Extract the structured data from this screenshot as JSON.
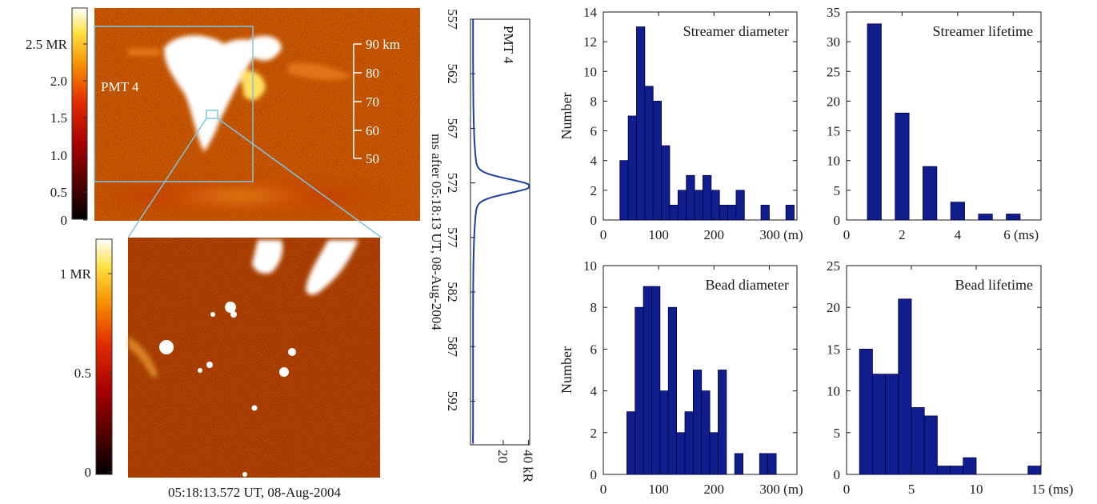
{
  "figure": {
    "top_image": {
      "colorbar_ticks": [
        "2.5 MR",
        "2.0",
        "1.5",
        "1.0",
        "0.5",
        "0"
      ],
      "box_label": "PMT 4",
      "altitude_ticks": [
        "90 km",
        "80",
        "70",
        "60",
        "50"
      ],
      "colormap": "hot"
    },
    "bottom_image": {
      "colorbar_ticks": [
        "1 MR",
        "0.5",
        "0"
      ],
      "caption": "05:18:13.572 UT, 08-Aug-2004",
      "colormap": "hot"
    },
    "pmt_trace": {
      "label": "PMT 4",
      "time_ticks": [
        "557",
        "562",
        "567",
        "572",
        "577",
        "582",
        "587",
        "592"
      ],
      "time_label": "ms after 05:18:13 UT, 08-Aug-2004",
      "intensity_ticks": [
        "20",
        "40 kR"
      ],
      "line_color": "#1f3f9a"
    },
    "bar_color": "#0f1e8c"
  },
  "chart_data": [
    {
      "type": "bar",
      "title": "Streamer diameter",
      "ylabel": "Number",
      "xlim": [
        0,
        350
      ],
      "ylim": [
        0,
        14
      ],
      "x_ticks": [
        0,
        100,
        200,
        300
      ],
      "x_tick_labels": [
        "0",
        "100",
        "200",
        "300 (m)"
      ],
      "y_ticks": [
        0,
        2,
        4,
        6,
        8,
        10,
        12,
        14
      ],
      "bin_width": 15,
      "x": [
        37.5,
        52.5,
        67.5,
        82.5,
        97.5,
        112.5,
        127.5,
        142.5,
        157.5,
        172.5,
        187.5,
        202.5,
        217.5,
        232.5,
        247.5,
        292.5,
        337.5
      ],
      "values": [
        4,
        7,
        13,
        9,
        8,
        5,
        1,
        2,
        3,
        2,
        3,
        2,
        1,
        1,
        2,
        1,
        1
      ]
    },
    {
      "type": "bar",
      "title": "Streamer lifetime",
      "ylabel": "",
      "xlim": [
        0,
        7
      ],
      "ylim": [
        0,
        35
      ],
      "x_ticks": [
        0,
        2,
        4,
        6
      ],
      "x_tick_labels": [
        "0",
        "2",
        "4",
        "6 (ms)"
      ],
      "y_ticks": [
        0,
        5,
        10,
        15,
        20,
        25,
        30,
        35
      ],
      "bin_width": 0.5,
      "x": [
        1,
        2,
        3,
        4,
        5,
        6
      ],
      "values": [
        33,
        18,
        9,
        3,
        1,
        1
      ]
    },
    {
      "type": "bar",
      "title": "Bead diameter",
      "ylabel": "Number",
      "xlim": [
        0,
        350
      ],
      "ylim": [
        0,
        10
      ],
      "x_ticks": [
        0,
        100,
        200,
        300
      ],
      "x_tick_labels": [
        "0",
        "100",
        "200",
        "300 (m)"
      ],
      "y_ticks": [
        0,
        2,
        4,
        6,
        8,
        10
      ],
      "bin_width": 15,
      "x": [
        50,
        65,
        80,
        95,
        110,
        125,
        140,
        155,
        170,
        185,
        200,
        215,
        245,
        290,
        305
      ],
      "values": [
        3,
        8,
        9,
        9,
        4,
        8,
        2,
        3,
        5,
        4,
        2,
        5,
        1,
        1,
        1
      ]
    },
    {
      "type": "bar",
      "title": "Bead lifetime",
      "ylabel": "",
      "xlim": [
        0,
        15
      ],
      "ylim": [
        0,
        25
      ],
      "x_ticks": [
        0,
        5,
        10,
        15
      ],
      "x_tick_labels": [
        "0",
        "5",
        "10",
        "15 (ms)"
      ],
      "y_ticks": [
        0,
        5,
        10,
        15,
        20,
        25
      ],
      "bin_width": 1,
      "x": [
        1.5,
        2.5,
        3.5,
        4.5,
        5.5,
        6.5,
        7.5,
        8.5,
        9.5,
        14.5
      ],
      "values": [
        15,
        12,
        12,
        21,
        8,
        7,
        1,
        1,
        2,
        1
      ]
    }
  ]
}
